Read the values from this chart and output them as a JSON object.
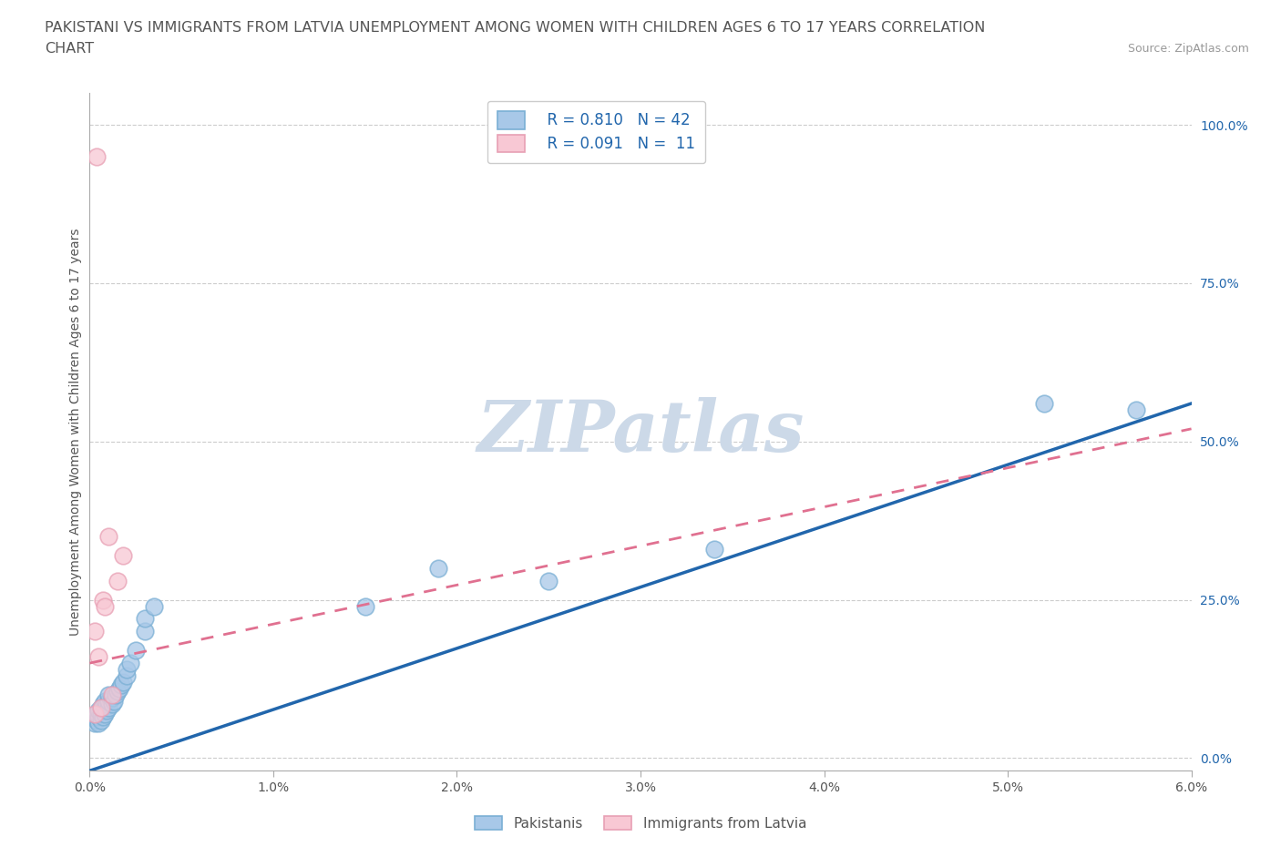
{
  "title_line1": "PAKISTANI VS IMMIGRANTS FROM LATVIA UNEMPLOYMENT AMONG WOMEN WITH CHILDREN AGES 6 TO 17 YEARS CORRELATION",
  "title_line2": "CHART",
  "source": "Source: ZipAtlas.com",
  "ylabel": "Unemployment Among Women with Children Ages 6 to 17 years",
  "xlim": [
    0.0,
    0.06
  ],
  "ylim": [
    -0.02,
    1.05
  ],
  "xticks": [
    0.0,
    0.01,
    0.02,
    0.03,
    0.04,
    0.05,
    0.06
  ],
  "xticklabels": [
    "0.0%",
    "1.0%",
    "2.0%",
    "3.0%",
    "4.0%",
    "5.0%",
    "6.0%"
  ],
  "yticks": [
    0.0,
    0.25,
    0.5,
    0.75,
    1.0
  ],
  "yticklabels": [
    "0.0%",
    "25.0%",
    "50.0%",
    "75.0%",
    "100.0%"
  ],
  "grid_color": "#cccccc",
  "background_color": "#ffffff",
  "watermark_color": "#ccd9e8",
  "legend_R1": "R = 0.810",
  "legend_N1": "N = 42",
  "legend_R2": "R = 0.091",
  "legend_N2": "N =  11",
  "blue_fill": "#a8c8e8",
  "blue_edge": "#7aafd4",
  "pink_fill": "#f8c8d4",
  "pink_edge": "#e8a0b4",
  "blue_line_color": "#2166ac",
  "pink_line_color": "#e07090",
  "label1": "Pakistanis",
  "label2": "Immigrants from Latvia",
  "pakistani_x": [
    0.0003,
    0.0003,
    0.0004,
    0.0004,
    0.0005,
    0.0005,
    0.0005,
    0.0006,
    0.0006,
    0.0006,
    0.0007,
    0.0007,
    0.0007,
    0.0008,
    0.0008,
    0.0008,
    0.0009,
    0.0009,
    0.001,
    0.001,
    0.001,
    0.0012,
    0.0012,
    0.0013,
    0.0014,
    0.0015,
    0.0016,
    0.0017,
    0.0018,
    0.002,
    0.002,
    0.0022,
    0.0025,
    0.003,
    0.003,
    0.0035,
    0.015,
    0.019,
    0.025,
    0.034,
    0.052,
    0.057
  ],
  "pakistani_y": [
    0.055,
    0.065,
    0.06,
    0.07,
    0.055,
    0.065,
    0.075,
    0.06,
    0.07,
    0.08,
    0.065,
    0.075,
    0.085,
    0.07,
    0.08,
    0.09,
    0.075,
    0.085,
    0.08,
    0.09,
    0.1,
    0.085,
    0.095,
    0.09,
    0.1,
    0.105,
    0.11,
    0.115,
    0.12,
    0.13,
    0.14,
    0.15,
    0.17,
    0.2,
    0.22,
    0.24,
    0.24,
    0.3,
    0.28,
    0.33,
    0.56,
    0.55
  ],
  "latvia_x": [
    0.0003,
    0.0003,
    0.0004,
    0.0005,
    0.0006,
    0.0007,
    0.0008,
    0.001,
    0.0012,
    0.0015,
    0.0018
  ],
  "latvia_y": [
    0.07,
    0.2,
    0.95,
    0.16,
    0.08,
    0.25,
    0.24,
    0.35,
    0.1,
    0.28,
    0.32
  ],
  "pk_line_x0": 0.0,
  "pk_line_y0": -0.02,
  "pk_line_x1": 0.06,
  "pk_line_y1": 0.56,
  "lv_line_x0": 0.0,
  "lv_line_y0": 0.15,
  "lv_line_x1": 0.06,
  "lv_line_y1": 0.52
}
